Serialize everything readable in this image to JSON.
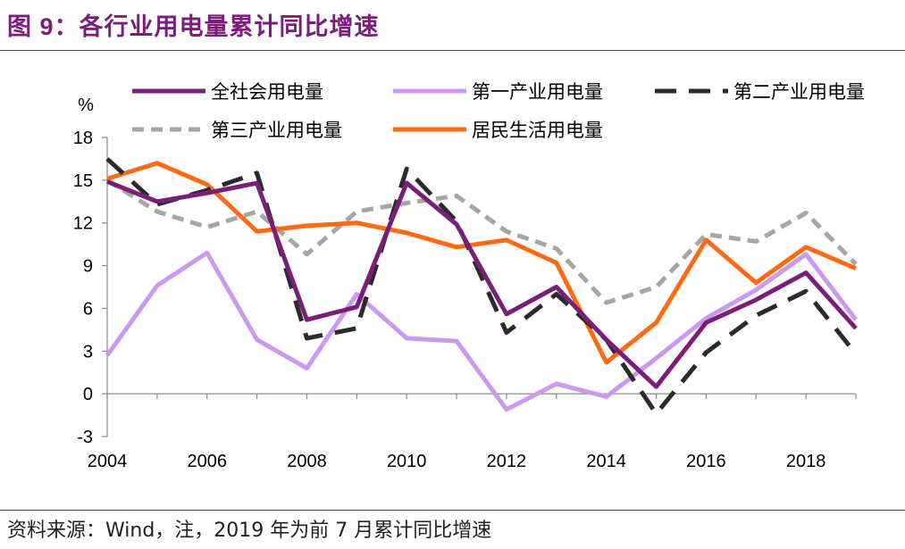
{
  "header": {
    "title": "图 9：各行业用电量累计同比增速"
  },
  "footer": {
    "source": "资料来源：Wind，注，2019 年为前 7 月累计同比增速"
  },
  "chart_data": {
    "type": "line",
    "ylabel": "%",
    "ylim": [
      -3,
      18
    ],
    "yticks": [
      -3,
      0,
      3,
      6,
      9,
      12,
      15,
      18
    ],
    "x": [
      2004,
      2005,
      2006,
      2007,
      2008,
      2009,
      2010,
      2011,
      2012,
      2013,
      2014,
      2015,
      2016,
      2017,
      2018,
      2019
    ],
    "xticks": [
      2004,
      2006,
      2008,
      2010,
      2012,
      2014,
      2016,
      2018
    ],
    "legend_position": "top",
    "series": [
      {
        "name": "全社会用电量",
        "color": "#7b1e7b",
        "dash": "solid",
        "values": [
          14.9,
          13.5,
          14.1,
          14.8,
          5.2,
          6.1,
          14.8,
          11.9,
          5.6,
          7.5,
          3.8,
          0.5,
          5.0,
          6.6,
          8.5,
          4.6
        ]
      },
      {
        "name": "第一产业用电量",
        "color": "#cc99f2",
        "dash": "solid",
        "values": [
          2.7,
          7.6,
          9.9,
          3.8,
          1.8,
          7.0,
          3.9,
          3.7,
          -1.1,
          0.7,
          -0.2,
          2.5,
          5.3,
          7.3,
          9.8,
          5.2
        ]
      },
      {
        "name": "第二产业用电量",
        "color": "#2b2b2b",
        "dash": "long-dash",
        "values": [
          16.5,
          13.3,
          14.3,
          15.5,
          3.9,
          4.6,
          15.8,
          12.1,
          4.3,
          7.0,
          3.8,
          -1.4,
          2.9,
          5.5,
          7.2,
          2.8
        ]
      },
      {
        "name": "第三产业用电量",
        "color": "#a6a6a6",
        "dash": "dash",
        "values": [
          15.0,
          12.8,
          11.7,
          12.8,
          9.8,
          12.8,
          13.4,
          13.9,
          11.4,
          10.2,
          6.4,
          7.5,
          11.2,
          10.7,
          12.7,
          9.1
        ]
      },
      {
        "name": "居民生活用电量",
        "color": "#ff6a13",
        "dash": "solid",
        "values": [
          15.1,
          16.2,
          14.7,
          11.4,
          11.8,
          12.0,
          11.3,
          10.3,
          10.8,
          9.2,
          2.2,
          5.0,
          10.8,
          7.8,
          10.3,
          8.8
        ]
      }
    ]
  }
}
